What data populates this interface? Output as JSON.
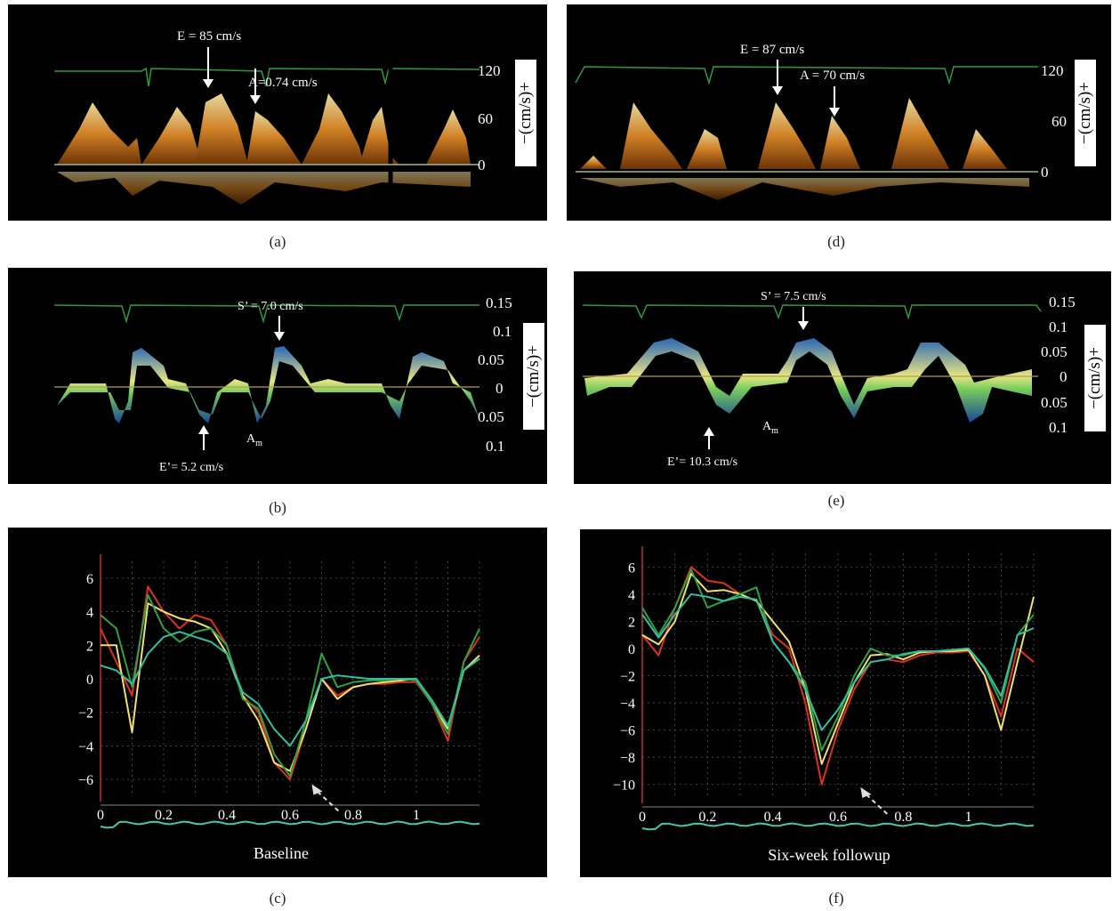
{
  "captions": {
    "a": "(a)",
    "b": "(b)",
    "c": "(c)",
    "d": "(d)",
    "e": "(e)",
    "f": "(f)"
  },
  "panel_a": {
    "annotations": {
      "E": "E = 85 cm/s",
      "A": "A=0.74 cm/s"
    },
    "ticks": [
      "120",
      "60",
      "0"
    ],
    "unit_label": "−(cm/s)+"
  },
  "panel_d": {
    "annotations": {
      "E": "E = 87 cm/s",
      "A": "A = 70 cm/s"
    },
    "ticks": [
      "120",
      "60",
      "0"
    ],
    "unit_label": "−(cm/s)+"
  },
  "panel_b": {
    "annotations": {
      "S": "S’ = 7.0 cm/s",
      "E": "E’= 5.2 cm/s",
      "Am": "A",
      "Am_sub": "m"
    },
    "ticks": [
      "0.15",
      "0.1",
      "0.05",
      "0",
      "0.05",
      "0.1"
    ],
    "unit_label": "−(cm/s)+"
  },
  "panel_e": {
    "annotations": {
      "S": "S’ = 7.5 cm/s",
      "E": "E’= 10.3 cm/s",
      "Am": "A",
      "Am_sub": "m"
    },
    "ticks": [
      "0.15",
      "0.1",
      "0.05",
      "0",
      "0.05",
      "0.1"
    ],
    "unit_label": "−(cm/s)+"
  },
  "colors": {
    "ecg": "#2e9a3e",
    "doppler_orange": "#e89a3a",
    "tissue_green": "#b8e06a",
    "series_red": "#e03020",
    "series_yellow": "#f0e070",
    "series_green": "#30a040",
    "series_teal": "#30c0a0",
    "axis_red": "#c03030"
  },
  "chart_data": [
    {
      "panel": "c",
      "type": "line",
      "title": "Baseline",
      "x_ticks": [
        "0",
        "0.2",
        "0.4",
        "0.6",
        "0.8",
        "1"
      ],
      "y_ticks": [
        "6",
        "4",
        "2",
        "0",
        "−2",
        "−4",
        "−6"
      ],
      "xlim": [
        0,
        1.2
      ],
      "ylim": [
        -7,
        7
      ],
      "grid": true,
      "x": [
        0,
        0.05,
        0.1,
        0.15,
        0.2,
        0.25,
        0.3,
        0.35,
        0.4,
        0.45,
        0.5,
        0.55,
        0.6,
        0.65,
        0.7,
        0.75,
        0.8,
        0.85,
        0.9,
        0.95,
        1.0,
        1.05,
        1.1,
        1.15,
        1.2
      ],
      "series": [
        {
          "values": [
            3,
            1,
            -1,
            5.5,
            4,
            3,
            3.8,
            3.5,
            2,
            -1,
            -2,
            -5,
            -6,
            -3,
            0,
            -1,
            -0.5,
            -0.3,
            -0.3,
            -0.2,
            -0.2,
            -1.5,
            -3.7,
            1,
            2.5
          ]
        },
        {
          "values": [
            2,
            2,
            -3.2,
            4.5,
            4,
            3.6,
            3.4,
            3,
            1.5,
            -1,
            -2.5,
            -5,
            -5.5,
            -3,
            0,
            -1.2,
            -0.5,
            -0.3,
            -0.2,
            -0.1,
            0,
            -1.5,
            -3,
            0.5,
            1.4
          ]
        },
        {
          "values": [
            3.8,
            3,
            -0.5,
            5,
            3,
            2.2,
            2.8,
            3,
            2,
            -1.2,
            -1.8,
            -4.5,
            -5.8,
            -2.5,
            1.5,
            -0.5,
            -0.2,
            -0.1,
            -0.1,
            0,
            -0.1,
            -1.5,
            -3.3,
            1,
            3
          ]
        },
        {
          "values": [
            0.8,
            0.5,
            -0.3,
            1.5,
            2.5,
            2.8,
            2.5,
            2.2,
            1.5,
            -0.8,
            -1.5,
            -3,
            -4,
            -2.5,
            0,
            0.2,
            0.1,
            0,
            0,
            0,
            0,
            -1.3,
            -2.8,
            0.5,
            1.2
          ]
        }
      ]
    },
    {
      "panel": "f",
      "type": "line",
      "title": "Six-week followup",
      "x_ticks": [
        "0",
        "0.2",
        "0.4",
        "0.6",
        "0.8",
        "1"
      ],
      "y_ticks": [
        "6",
        "4",
        "2",
        "0",
        "−2",
        "−4",
        "−6",
        "−8",
        "−10"
      ],
      "xlim": [
        0,
        1.2
      ],
      "ylim": [
        -11,
        7
      ],
      "grid": true,
      "x": [
        0,
        0.05,
        0.1,
        0.15,
        0.2,
        0.25,
        0.3,
        0.35,
        0.4,
        0.45,
        0.5,
        0.55,
        0.6,
        0.65,
        0.7,
        0.75,
        0.8,
        0.85,
        0.9,
        0.95,
        1.0,
        1.05,
        1.1,
        1.15,
        1.2
      ],
      "series": [
        {
          "values": [
            1,
            -0.5,
            3,
            6,
            5,
            4.8,
            4,
            3.5,
            1,
            0,
            -4,
            -10,
            -6,
            -3,
            -1,
            -0.8,
            -1,
            -0.5,
            -0.3,
            -0.3,
            -0.2,
            -2,
            -5,
            0,
            -1
          ]
        },
        {
          "values": [
            1,
            0.3,
            2,
            5.5,
            4.2,
            4.3,
            4,
            3.5,
            2,
            0.5,
            -3,
            -8.5,
            -5.5,
            -2.5,
            -0.5,
            -0.4,
            -0.8,
            -0.3,
            -0.2,
            -0.2,
            -0.1,
            -2,
            -6,
            -1,
            3.8
          ]
        },
        {
          "values": [
            3,
            1,
            3,
            5.8,
            3,
            3.5,
            4,
            4.5,
            0.5,
            -1,
            -2.5,
            -7.5,
            -5,
            -2,
            0,
            -0.5,
            -0.5,
            -0.2,
            -0.2,
            -0.1,
            0,
            -1.5,
            -4,
            1,
            2.5
          ]
        },
        {
          "values": [
            2.5,
            0.8,
            2.5,
            4,
            3.8,
            3.5,
            3.8,
            3.6,
            0.5,
            -1,
            -3,
            -6,
            -4.5,
            -2.5,
            -1,
            -0.8,
            -0.4,
            -0.2,
            -0.2,
            -0.1,
            0,
            -1.4,
            -3.5,
            1,
            1.5
          ]
        }
      ]
    }
  ]
}
